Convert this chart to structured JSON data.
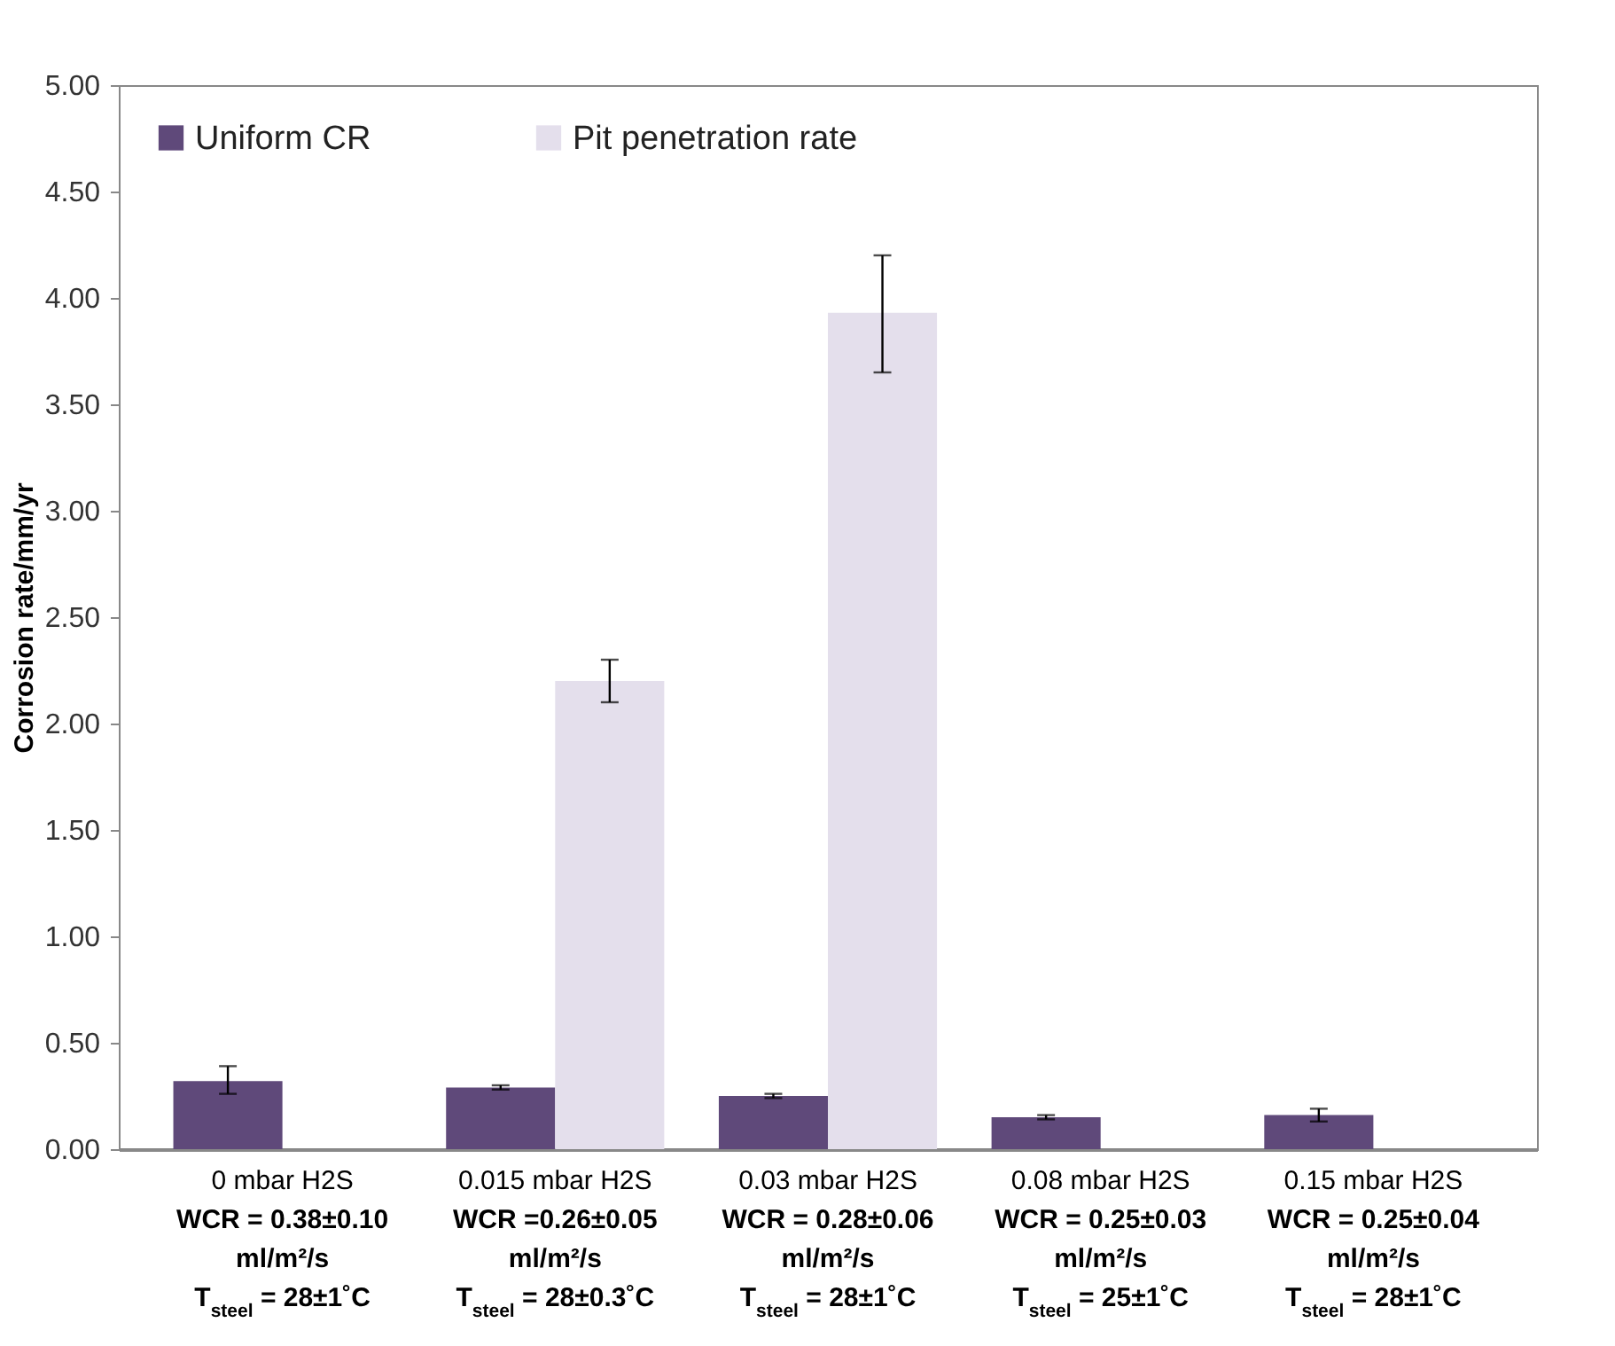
{
  "chart_data": {
    "type": "bar",
    "ylabel": "Corrosion rate/mm/yr",
    "categories": [
      "0 mbar H2S\nWCR = 0.38±0.10\nml/m²/s\nT$_{steel}$ = 28±1˚C",
      "0.015 mbar H2S\nWCR =0.26±0.05\nml/m²/s\nT$_{steel}$ = 28±0.3˚C",
      "0.03 mbar H2S\nWCR = 0.28±0.06\nml/m²/s\nT$_{steel}$ = 28±1˚C",
      "0.08 mbar H2S\nWCR = 0.25±0.03\nml/m²/s\nT$_{steel}$ = 25±1˚C",
      "0.15 mbar H2S\nWCR = 0.25±0.04\nml/m²/s\nT$_{steel}$ = 28±1˚C"
    ],
    "series": [
      {
        "name": "Uniform CR",
        "color": "#5f497a",
        "values": [
          0.32,
          0.29,
          0.25,
          0.15,
          0.16
        ],
        "errors": [
          [
            0.26,
            0.39
          ],
          [
            0.28,
            0.3
          ],
          [
            0.24,
            0.26
          ],
          [
            0.14,
            0.16
          ],
          [
            0.13,
            0.19
          ]
        ]
      },
      {
        "name": "Pit penetration rate",
        "color": "#e4dfec",
        "values": [
          0,
          2.2,
          3.93,
          0,
          0
        ],
        "errors": [
          null,
          [
            2.1,
            2.3
          ],
          [
            3.65,
            4.2
          ],
          null,
          null
        ]
      }
    ],
    "ylim": [
      0,
      5
    ],
    "yticks": [
      {
        "value": 0,
        "label": "0.00"
      },
      {
        "value": 0.5,
        "label": "0.50"
      },
      {
        "value": 1,
        "label": "1.00"
      },
      {
        "value": 1.5,
        "label": "1.50"
      },
      {
        "value": 2,
        "label": "2.00"
      },
      {
        "value": 2.5,
        "label": "2.50"
      },
      {
        "value": 3,
        "label": "3.00"
      },
      {
        "value": 3.5,
        "label": "3.50"
      },
      {
        "value": 4,
        "label": "4.00"
      },
      {
        "value": 4.5,
        "label": "4.50"
      },
      {
        "value": 5,
        "label": "5.00"
      }
    ],
    "grid": false,
    "legend": "top left"
  }
}
